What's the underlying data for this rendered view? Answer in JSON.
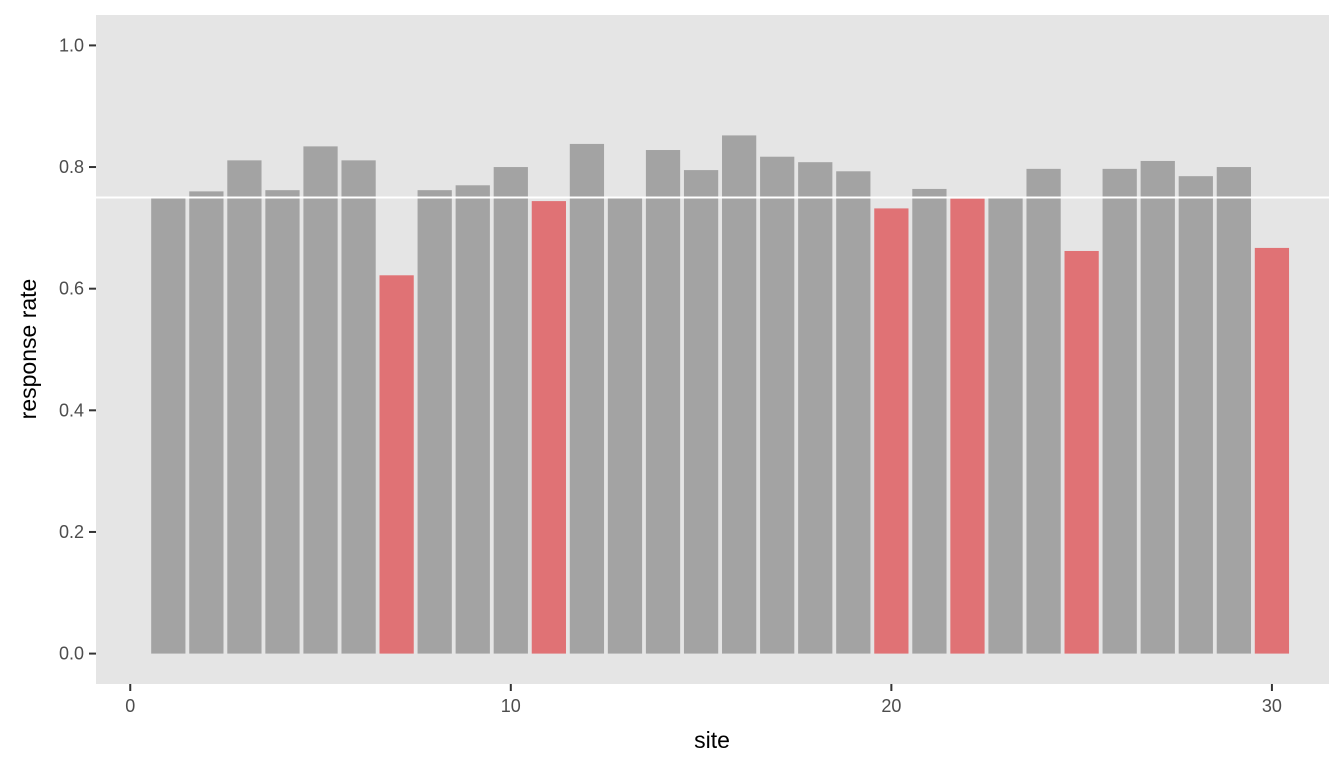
{
  "chart_data": {
    "type": "bar",
    "xlabel": "site",
    "ylabel": "response rate",
    "xlim": [
      -0.9,
      31.5
    ],
    "ylim": [
      -0.05,
      1.05
    ],
    "x_ticks": [
      0,
      10,
      20,
      30
    ],
    "y_ticks": [
      0.0,
      0.2,
      0.4,
      0.6,
      0.8,
      1.0
    ],
    "x_tick_labels": [
      "0",
      "10",
      "20",
      "30"
    ],
    "y_tick_labels": [
      "0.0",
      "0.2",
      "0.4",
      "0.6",
      "0.8",
      "1.0"
    ],
    "grid": false,
    "reference_line": 0.75,
    "x": [
      1,
      2,
      3,
      4,
      5,
      6,
      7,
      8,
      9,
      10,
      11,
      12,
      13,
      14,
      15,
      16,
      17,
      18,
      19,
      20,
      21,
      22,
      23,
      24,
      25,
      26,
      27,
      28,
      29,
      30
    ],
    "values": [
      0.75,
      0.76,
      0.811,
      0.762,
      0.834,
      0.811,
      0.622,
      0.762,
      0.77,
      0.8,
      0.744,
      0.838,
      0.75,
      0.828,
      0.795,
      0.852,
      0.817,
      0.808,
      0.793,
      0.732,
      0.764,
      0.748,
      0.75,
      0.797,
      0.662,
      0.797,
      0.81,
      0.785,
      0.8,
      0.667
    ],
    "colors": {
      "above_threshold": "#a3a3a3",
      "below_threshold": "#e07275",
      "panel_background": "#e5e5e5",
      "reference_line": "#ffffff",
      "tick_mark": "#333333"
    }
  }
}
